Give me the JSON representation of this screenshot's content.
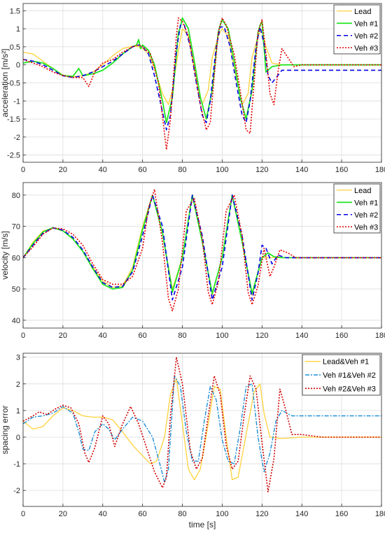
{
  "colors": {
    "lead": "#FFD23C",
    "veh1": "#22E622",
    "veh2": "#0000E6",
    "veh3": "#E60000",
    "err1": "#FFD23C",
    "err2": "#1F8FD6",
    "err3": "#D00000"
  },
  "chart_data": [
    {
      "type": "line",
      "ylabel": "acceleration [m/s²]",
      "xlabel": "",
      "xlim": [
        0,
        180
      ],
      "ylim": [
        -2.7,
        1.7
      ],
      "xticks": [
        0,
        20,
        40,
        60,
        80,
        100,
        120,
        140,
        160,
        180
      ],
      "yticks": [
        -2.5,
        -2,
        -1.5,
        -1,
        -0.5,
        0,
        0.5,
        1,
        1.5
      ],
      "grid": true,
      "legend": "top-right",
      "series": [
        {
          "name": "Lead",
          "color": "#FFD23C",
          "dash": "",
          "width": 1.3,
          "x": [
            0,
            5,
            10,
            15,
            20,
            25,
            30,
            35,
            40,
            45,
            50,
            55,
            58,
            60,
            63,
            66,
            70,
            73,
            75,
            78,
            80,
            83,
            85,
            88,
            90,
            93,
            95,
            98,
            100,
            103,
            105,
            108,
            110,
            113,
            115,
            118,
            120,
            122,
            125,
            130,
            140,
            180
          ],
          "y": [
            0.35,
            0.3,
            0.1,
            -0.1,
            -0.28,
            -0.33,
            -0.3,
            -0.2,
            0,
            0.25,
            0.45,
            0.52,
            0.5,
            0.45,
            0.3,
            -0.1,
            -0.8,
            -1.1,
            -0.7,
            0.4,
            1.0,
            0.8,
            0.2,
            -0.6,
            -1.1,
            -0.7,
            0.2,
            0.8,
            1.0,
            0.8,
            0.2,
            -0.6,
            -1.1,
            -0.8,
            0.2,
            0.8,
            1.0,
            0.5,
            0.05,
            0,
            0,
            0
          ]
        },
        {
          "name": "Veh #1",
          "color": "#22E622",
          "dash": "",
          "width": 1.8,
          "x": [
            0,
            5,
            10,
            15,
            20,
            25,
            28,
            30,
            35,
            40,
            45,
            50,
            55,
            57,
            58,
            59,
            60,
            63,
            66,
            70,
            72,
            75,
            78,
            79,
            80,
            83,
            86,
            89,
            92,
            95,
            98,
            99,
            100,
            103,
            106,
            109,
            112,
            115,
            118,
            119,
            120,
            122,
            125,
            130,
            140,
            180
          ],
          "y": [
            0.05,
            0.1,
            0.05,
            -0.1,
            -0.3,
            -0.32,
            -0.1,
            -0.3,
            -0.25,
            -0.15,
            0.05,
            0.3,
            0.5,
            0.55,
            0.7,
            0.45,
            0.55,
            0.4,
            0.0,
            -1.0,
            -1.6,
            -0.9,
            0.9,
            1.05,
            1.3,
            1.0,
            0.1,
            -0.9,
            -1.5,
            -0.7,
            0.9,
            1.1,
            1.25,
            1.0,
            0.1,
            -0.9,
            -1.5,
            -0.7,
            0.9,
            1.1,
            1.2,
            -0.2,
            -0.05,
            0,
            0,
            0
          ]
        },
        {
          "name": "Veh #2",
          "color": "#0000E6",
          "dash": "6,4",
          "width": 1.6,
          "x": [
            0,
            5,
            10,
            15,
            20,
            25,
            30,
            35,
            40,
            45,
            50,
            55,
            58,
            60,
            63,
            66,
            70,
            72,
            74,
            77,
            79,
            81,
            84,
            87,
            90,
            92,
            94,
            97,
            99,
            101,
            104,
            107,
            110,
            112,
            114,
            117,
            119,
            121,
            123,
            125,
            130,
            140,
            180
          ],
          "y": [
            0.15,
            0.1,
            0.0,
            -0.15,
            -0.3,
            -0.35,
            -0.3,
            -0.2,
            -0.05,
            0.1,
            0.3,
            0.5,
            0.55,
            0.5,
            0.3,
            -0.3,
            -1.3,
            -1.8,
            -1.4,
            0.4,
            1.1,
            1.1,
            0.5,
            -0.5,
            -1.4,
            -1.6,
            -1.0,
            0.5,
            1.05,
            1.05,
            0.5,
            -0.5,
            -1.4,
            -1.6,
            -1.0,
            0.5,
            1.05,
            0.6,
            -0.3,
            -0.5,
            -0.15,
            -0.15,
            -0.15
          ]
        },
        {
          "name": "Veh #3",
          "color": "#E60000",
          "dash": "2,2",
          "width": 1.6,
          "x": [
            0,
            5,
            10,
            15,
            20,
            25,
            30,
            33,
            36,
            40,
            45,
            50,
            55,
            58,
            60,
            64,
            68,
            71,
            72,
            74,
            77,
            78,
            80,
            83,
            86,
            89,
            92,
            94,
            96,
            98,
            100,
            102,
            106,
            109,
            112,
            114,
            116,
            118,
            120,
            122,
            124,
            126,
            128,
            130,
            133,
            136,
            140,
            180
          ],
          "y": [
            0.15,
            0.05,
            -0.05,
            -0.2,
            -0.3,
            -0.35,
            -0.35,
            -0.6,
            -0.2,
            0.05,
            0.15,
            0.35,
            0.5,
            0.55,
            0.5,
            0.3,
            -0.5,
            -1.9,
            -2.35,
            -1.5,
            0.8,
            1.3,
            1.2,
            0.8,
            -0.1,
            -1.1,
            -1.8,
            -1.6,
            -0.3,
            0.9,
            1.3,
            1.1,
            0.3,
            -0.7,
            -1.8,
            -1.9,
            -0.5,
            0.9,
            1.25,
            0.3,
            -0.8,
            -1.1,
            -0.2,
            0.45,
            0.2,
            -0.05,
            0,
            0
          ]
        }
      ]
    },
    {
      "type": "line",
      "ylabel": "velocity [m/s]",
      "xlabel": "",
      "xlim": [
        0,
        180
      ],
      "ylim": [
        37.5,
        84
      ],
      "xticks": [
        0,
        20,
        40,
        60,
        80,
        100,
        120,
        140,
        160,
        180
      ],
      "yticks": [
        40,
        50,
        60,
        70,
        80
      ],
      "grid": true,
      "legend": "top-right",
      "series": [
        {
          "name": "Lead",
          "color": "#FFD23C",
          "dash": "",
          "width": 1.3,
          "x": [
            0,
            5,
            10,
            15,
            20,
            25,
            30,
            35,
            40,
            45,
            50,
            55,
            60,
            65,
            70,
            75,
            80,
            85,
            90,
            95,
            100,
            105,
            110,
            115,
            120,
            125,
            130,
            180
          ],
          "y": [
            60,
            65,
            68.5,
            69.5,
            68.5,
            66,
            62,
            57,
            52.5,
            50.5,
            51,
            57,
            70,
            80,
            68,
            50,
            60,
            80,
            65,
            48,
            60,
            80,
            65,
            48,
            60,
            60,
            60,
            60
          ]
        },
        {
          "name": "Veh #1",
          "color": "#22E622",
          "dash": "",
          "width": 1.8,
          "x": [
            0,
            5,
            10,
            15,
            20,
            25,
            30,
            35,
            40,
            45,
            50,
            55,
            60,
            65,
            70,
            75,
            80,
            85,
            90,
            95,
            100,
            105,
            110,
            115,
            120,
            123,
            126,
            130,
            180
          ],
          "y": [
            60,
            64.5,
            68.2,
            69.6,
            68.6,
            66,
            62,
            56.5,
            51.5,
            50,
            50.5,
            56,
            69,
            80,
            68,
            49,
            60,
            80,
            65,
            48.5,
            60,
            80,
            65,
            48.5,
            60,
            61.5,
            60.3,
            60,
            60
          ]
        },
        {
          "name": "Veh #2",
          "color": "#0000E6",
          "dash": "6,4",
          "width": 1.6,
          "x": [
            0,
            5,
            10,
            15,
            20,
            25,
            30,
            35,
            40,
            45,
            50,
            55,
            60,
            65,
            70,
            75,
            80,
            85,
            90,
            95,
            100,
            105,
            110,
            115,
            118,
            120,
            122,
            125,
            128,
            132,
            180
          ],
          "y": [
            60,
            64,
            67.8,
            69.5,
            68.8,
            66.5,
            62.5,
            57,
            52,
            50.5,
            50.8,
            55.5,
            67,
            80,
            70,
            46.5,
            57,
            80,
            67,
            46.5,
            57,
            80,
            67,
            46.5,
            55,
            64,
            63,
            58,
            60.8,
            60,
            60
          ]
        },
        {
          "name": "Veh #3",
          "color": "#E60000",
          "dash": "2,2",
          "width": 1.6,
          "x": [
            0,
            5,
            10,
            15,
            20,
            25,
            30,
            35,
            40,
            45,
            50,
            55,
            60,
            63,
            66,
            70,
            73,
            75,
            78,
            82,
            86,
            90,
            93,
            95,
            98,
            102,
            106,
            110,
            113,
            115,
            118,
            121,
            124,
            126,
            129,
            133,
            137,
            140,
            180
          ],
          "y": [
            60,
            63.5,
            67.5,
            69.5,
            69.2,
            67.5,
            64,
            58,
            53,
            51.5,
            51.5,
            54,
            63,
            76,
            81.8,
            65,
            47,
            43,
            50,
            75,
            79,
            66,
            49,
            45,
            52,
            75,
            80,
            67,
            49,
            45,
            51,
            63,
            54,
            57,
            62.5,
            61.5,
            60,
            60,
            60
          ]
        }
      ]
    },
    {
      "type": "line",
      "ylabel": "spacing error",
      "xlabel": "time [s]",
      "xlim": [
        0,
        180
      ],
      "ylim": [
        -2.6,
        3.15
      ],
      "xticks": [
        0,
        20,
        40,
        60,
        80,
        100,
        120,
        140,
        160,
        180
      ],
      "yticks": [
        -2,
        -1,
        0,
        1,
        2,
        3
      ],
      "grid": true,
      "legend": "top-right",
      "series": [
        {
          "name": "Lead&Veh #1",
          "color": "#FFD23C",
          "dash": "",
          "width": 1.3,
          "x": [
            0,
            5,
            10,
            15,
            20,
            25,
            30,
            35,
            40,
            45,
            50,
            55,
            60,
            64,
            67,
            71,
            74,
            77,
            80,
            83,
            86,
            89,
            93,
            96,
            99,
            102,
            105,
            108,
            112,
            116,
            119,
            121,
            124,
            130,
            140,
            180
          ],
          "y": [
            0.6,
            0.3,
            0.4,
            0.8,
            1.1,
            1.0,
            0.8,
            0.75,
            0.75,
            0.65,
            0.2,
            -0.3,
            -0.7,
            -1.0,
            -0.9,
            0.0,
            1.6,
            2.2,
            0.5,
            -1.2,
            -1.6,
            -1.2,
            0.5,
            1.9,
            1.8,
            0.0,
            -1.6,
            -1.5,
            0.1,
            1.7,
            2.0,
            0.9,
            0.0,
            -0.05,
            0,
            0
          ]
        },
        {
          "name": "Veh #1&Veh #2",
          "color": "#1F8FD6",
          "dash": "6,2,2,2",
          "width": 1.4,
          "x": [
            0,
            5,
            10,
            15,
            20,
            25,
            28,
            30,
            33,
            36,
            40,
            43,
            46,
            50,
            55,
            60,
            65,
            69,
            71,
            73,
            76,
            79,
            82,
            85,
            88,
            91,
            94,
            97,
            100,
            103,
            106,
            109,
            112,
            115,
            118,
            121,
            124,
            127,
            130,
            135,
            140,
            180
          ],
          "y": [
            0.5,
            0.75,
            0.8,
            0.9,
            1.15,
            0.9,
            0.2,
            -0.45,
            -0.5,
            0.2,
            0.5,
            0.3,
            -0.1,
            0.3,
            0.75,
            0.6,
            0.0,
            -1.1,
            -1.7,
            -1.2,
            2.3,
            1.9,
            0.2,
            -0.9,
            -0.9,
            0.6,
            1.9,
            1.4,
            -0.1,
            -0.9,
            -1.0,
            0.3,
            1.9,
            2.0,
            0.0,
            -1.3,
            -0.6,
            0.6,
            1.0,
            0.8,
            0.8,
            0.8
          ]
        },
        {
          "name": "Veh #2&Veh #3",
          "color": "#D00000",
          "dash": "2,2",
          "width": 1.6,
          "x": [
            0,
            5,
            8,
            12,
            16,
            20,
            24,
            28,
            31,
            33,
            36,
            40,
            43,
            46,
            50,
            54,
            58,
            62,
            66,
            70,
            72,
            74,
            77,
            80,
            84,
            87,
            90,
            93,
            96,
            99,
            102,
            105,
            108,
            111,
            114,
            117,
            120,
            123,
            126,
            129,
            132,
            135,
            140,
            150,
            180
          ],
          "y": [
            0.6,
            0.8,
            0.95,
            0.85,
            1.05,
            1.2,
            1.1,
            0.5,
            -0.6,
            -0.95,
            -0.4,
            0.8,
            0.5,
            -0.35,
            0.5,
            1.15,
            0.5,
            -0.4,
            -1.3,
            -1.9,
            -1.5,
            0.8,
            3.0,
            2.0,
            -0.5,
            -1.2,
            -0.8,
            0.8,
            2.3,
            1.6,
            -0.3,
            -1.2,
            -0.9,
            0.8,
            2.3,
            1.8,
            -0.2,
            -2.05,
            -0.8,
            1.8,
            1.0,
            0.1,
            0.1,
            0,
            0
          ]
        }
      ]
    }
  ]
}
